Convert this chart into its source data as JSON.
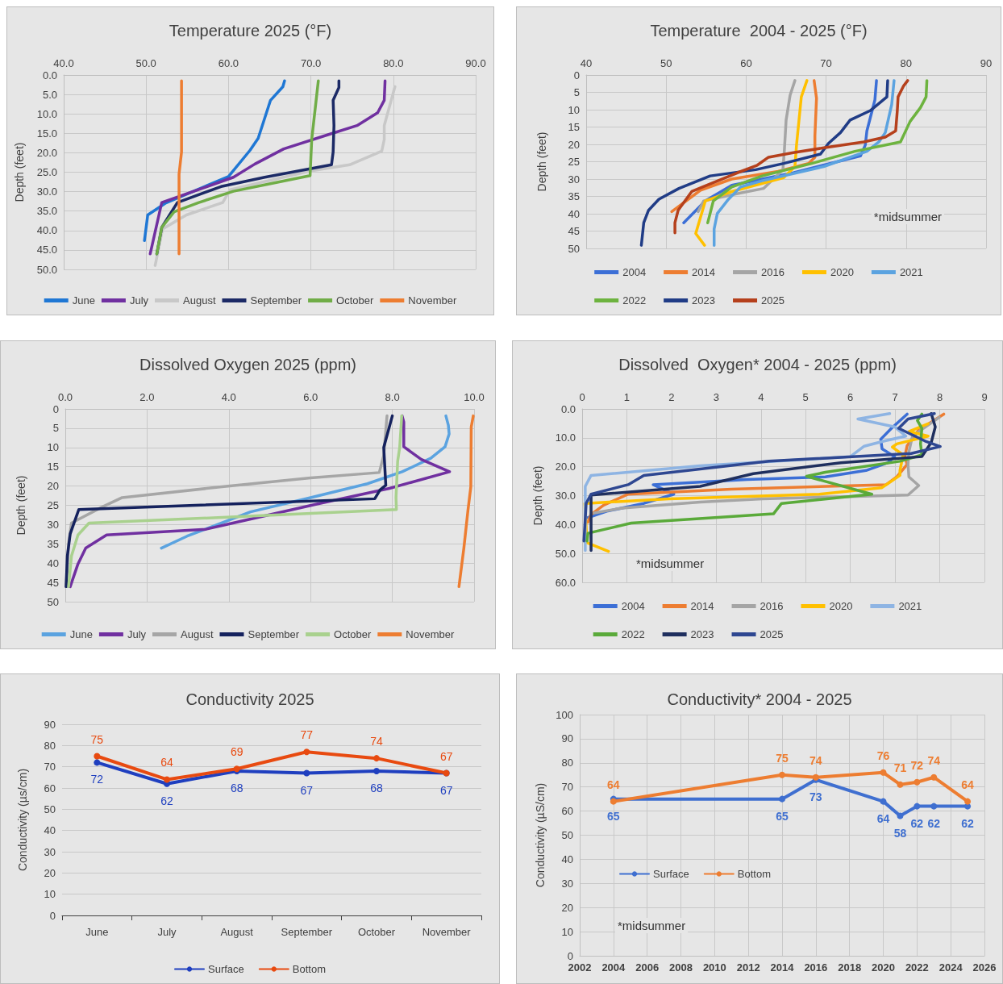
{
  "chart_data": [
    {
      "type": "line",
      "title": "Temperature 2025 (°F)",
      "ylabel": "Depth (feet)",
      "xlim": [
        40,
        90
      ],
      "xticks": [
        {
          "value": 40,
          "label": "40.0"
        },
        {
          "value": 50,
          "label": "50.0"
        },
        {
          "value": 60,
          "label": "60.0"
        },
        {
          "value": 70,
          "label": "70.0"
        },
        {
          "value": 80,
          "label": "80.0"
        },
        {
          "value": 90,
          "label": "90.0"
        }
      ],
      "ylim": [
        50,
        0
      ],
      "yticks": [
        {
          "value": 0,
          "label": "0.0"
        },
        {
          "value": 5,
          "label": "5.0"
        },
        {
          "value": 10,
          "label": "10.0"
        },
        {
          "value": 15,
          "label": "15.0"
        },
        {
          "value": 20,
          "label": "20.0"
        },
        {
          "value": 25,
          "label": "25.0"
        },
        {
          "value": 30,
          "label": "30.0"
        },
        {
          "value": 35,
          "label": "35.0"
        },
        {
          "value": 40,
          "label": "40.0"
        },
        {
          "value": 45,
          "label": "45.0"
        },
        {
          "value": 50,
          "label": "50.0"
        }
      ],
      "grid": true,
      "legend": "bottom",
      "marker": "none",
      "series": [
        {
          "name": "June",
          "color": "#1f77d4",
          "x": [
            66.8,
            66.6,
            65.1,
            63.6,
            62.6,
            60.0,
            52.4,
            50.2,
            49.8
          ],
          "values": [
            1.5,
            3,
            6.5,
            16.3,
            19.4,
            26.1,
            32.9,
            36,
            42.6
          ]
        },
        {
          "name": "July",
          "color": "#7030a0",
          "x": [
            79.0,
            78.9,
            78.1,
            75.6,
            72.0,
            66.7,
            63.2,
            60.6,
            51.9,
            50.5
          ],
          "values": [
            1.5,
            6.5,
            9.7,
            13,
            15.4,
            19,
            22.9,
            26.3,
            32.8,
            46
          ]
        },
        {
          "name": "August",
          "color": "#c8c8c8",
          "x": [
            80.2,
            78.9,
            78.9,
            78.6,
            74.7,
            69.9,
            60.2,
            59.3,
            54.9,
            52.0,
            51.1
          ],
          "values": [
            3,
            13,
            16.6,
            19.6,
            23.1,
            24.7,
            29.5,
            32.8,
            36,
            39.6,
            49
          ]
        },
        {
          "name": "September",
          "color": "#1c2a66",
          "x": [
            73.4,
            73.4,
            72.7,
            72.8,
            72.7,
            72.5,
            64.4,
            59.1,
            53.8,
            51.9,
            51.3
          ],
          "values": [
            1.5,
            3.2,
            6.5,
            13,
            19.8,
            23.1,
            26.3,
            28.7,
            32.8,
            39.2,
            46
          ]
        },
        {
          "name": "October",
          "color": "#70ad47",
          "x": [
            70.9,
            70.1,
            69.9,
            65.2,
            60.6,
            56.4,
            53.4,
            51.9,
            51.3
          ],
          "values": [
            1.5,
            16.6,
            25.9,
            27.9,
            29.9,
            32.8,
            35.2,
            39.2,
            46
          ]
        },
        {
          "name": "November",
          "color": "#ed7d31",
          "x": [
            54.3,
            54.3,
            54.0,
            54.0,
            54.0
          ],
          "values": [
            1.5,
            19.8,
            25.5,
            30.3,
            46
          ]
        }
      ]
    },
    {
      "type": "line",
      "title": "Temperature  2004 - 2025 (°F)",
      "ylabel": "Depth (feet)",
      "xlim": [
        40,
        90
      ],
      "xticks": [
        40,
        50,
        60,
        70,
        80,
        90
      ],
      "ylim": [
        50,
        0
      ],
      "yticks": [
        0,
        5,
        10,
        15,
        20,
        25,
        30,
        35,
        40,
        45,
        50
      ],
      "grid": true,
      "legend": "bottom",
      "marker": "none",
      "annotations": [
        "*midsummer"
      ],
      "series": [
        {
          "name": "2004",
          "color": "#3c6fd6",
          "x": [
            76.3,
            76.1,
            75.1,
            74.9,
            74.3,
            65.9,
            58.2,
            54.9,
            52.2
          ],
          "values": [
            1.6,
            7.2,
            16.1,
            20.2,
            23.3,
            28.2,
            31.8,
            36.3,
            42.6
          ]
        },
        {
          "name": "2014",
          "color": "#ed7d31",
          "x": [
            68.5,
            68.8,
            68.6,
            68.6,
            67.8,
            64.0,
            58.2,
            54.3,
            50.7
          ],
          "values": [
            1.6,
            6.7,
            17.5,
            23.7,
            25.5,
            27.8,
            30,
            33.2,
            39.4
          ]
        },
        {
          "name": "2016",
          "color": "#a5a5a5",
          "x": [
            66.1,
            65.5,
            65.0,
            64.8,
            64.6,
            62.2,
            59.3,
            54.7,
            54.0
          ],
          "values": [
            1.6,
            5.8,
            13,
            21,
            27.3,
            32.7,
            34,
            36.3,
            39.4
          ]
        },
        {
          "name": "2020",
          "color": "#ffc000",
          "x": [
            67.6,
            66.9,
            66.3,
            66.1,
            64.7,
            58.2,
            54.9,
            53.7,
            54.8
          ],
          "values": [
            1.6,
            6.3,
            20.2,
            26.4,
            29.6,
            33.6,
            36.3,
            45.7,
            49.1
          ]
        },
        {
          "name": "2021",
          "color": "#5ba3e0",
          "x": [
            78.5,
            78.2,
            77.4,
            76.6,
            75.1,
            69.7,
            62.0,
            59.3,
            57.8,
            56.4,
            56.0,
            56.0
          ],
          "values": [
            1.6,
            8.5,
            16.6,
            19.3,
            22,
            26.4,
            30.5,
            32.3,
            35.8,
            39.9,
            44.4,
            49.1
          ]
        },
        {
          "name": "2022",
          "color": "#6db33f",
          "x": [
            82.6,
            82.5,
            81.8,
            80.5,
            79.3,
            73.6,
            68.2,
            62.0,
            58.2,
            55.9,
            55.2
          ],
          "values": [
            1.6,
            6.3,
            9.4,
            13.4,
            19.3,
            22,
            25.5,
            29.1,
            32.3,
            36.3,
            42.6
          ]
        },
        {
          "name": "2023",
          "color": "#203c86",
          "x": [
            77.7,
            77.6,
            75.5,
            73.0,
            71.8,
            70.3,
            69.3,
            64.7,
            61.2,
            55.5,
            51.6,
            49.1,
            47.8,
            47.2,
            46.9
          ],
          "values": [
            1.6,
            6.3,
            10.3,
            13,
            16.6,
            19.7,
            22.8,
            25.5,
            27.3,
            29.1,
            32.7,
            35.8,
            39,
            42.6,
            49.1
          ]
        },
        {
          "name": "2025",
          "color": "#b5401c",
          "x": [
            80.2,
            79.7,
            79.0,
            78.9,
            78.7,
            77.4,
            74.7,
            69.7,
            65.9,
            62.8,
            61.4,
            58.9,
            55.1,
            53.2,
            51.5,
            51.1,
            51.1
          ],
          "values": [
            1.6,
            3.1,
            6.3,
            10.3,
            16.1,
            17.9,
            19.3,
            21,
            22.4,
            23.7,
            26,
            28.2,
            31.8,
            33.6,
            39,
            42.6,
            45.5
          ]
        }
      ]
    },
    {
      "type": "line",
      "title": "Dissolved Oxygen 2025 (ppm)",
      "ylabel": "Depth (feet)",
      "xlim": [
        0,
        10
      ],
      "xticks": [
        {
          "value": 0,
          "label": "0.0"
        },
        {
          "value": 2,
          "label": "2.0"
        },
        {
          "value": 4,
          "label": "4.0"
        },
        {
          "value": 6,
          "label": "6.0"
        },
        {
          "value": 8,
          "label": "8.0"
        },
        {
          "value": 10,
          "label": "10.0"
        }
      ],
      "ylim": [
        50,
        0
      ],
      "yticks": [
        0,
        5,
        10,
        15,
        20,
        25,
        30,
        35,
        40,
        45,
        50
      ],
      "grid": true,
      "legend": "bottom",
      "marker": "none",
      "series": [
        {
          "name": "June",
          "color": "#5ba3e0",
          "x": [
            9.31,
            9.37,
            9.39,
            9.29,
            8.94,
            8.24,
            7.39,
            6.0,
            4.53,
            2.98,
            2.35
          ],
          "values": [
            1.8,
            4.2,
            6.5,
            9.8,
            12.8,
            16.3,
            19.4,
            23,
            26.7,
            33,
            36.1
          ]
        },
        {
          "name": "July",
          "color": "#7030a0",
          "x": [
            8.24,
            8.28,
            8.28,
            8.71,
            9.4,
            7.93,
            6.15,
            4.1,
            3.44,
            1.01,
            0.5,
            0.31,
            0.12
          ],
          "values": [
            1.8,
            3.4,
            9.8,
            13.1,
            16.3,
            20.6,
            24.7,
            29.6,
            31.2,
            32.7,
            36.1,
            40.2,
            46.1
          ]
        },
        {
          "name": "August",
          "color": "#a6a6a6",
          "x": [
            7.87,
            7.79,
            7.68,
            6.0,
            3.83,
            1.39,
            0.89,
            0.15,
            0.08,
            0.02
          ],
          "values": [
            1.8,
            12,
            16.5,
            17.9,
            20.2,
            23,
            25.5,
            29.6,
            34.9,
            46.1
          ]
        },
        {
          "name": "September",
          "color": "#15225e",
          "x": [
            8.0,
            7.79,
            7.84,
            7.7,
            7.57,
            0.33,
            0.12,
            0.05,
            0.02
          ],
          "values": [
            1.8,
            10,
            19.8,
            21,
            23.3,
            26.1,
            32.4,
            38.2,
            46.1
          ]
        },
        {
          "name": "October",
          "color": "#a9d18e",
          "x": [
            8.23,
            8.18,
            8.13,
            8.09,
            8.1,
            4.37,
            0.58,
            0.31,
            0.15,
            0.08
          ],
          "values": [
            1.8,
            10,
            13.6,
            23,
            26.1,
            27.9,
            29.6,
            32.7,
            38.2,
            46.1
          ]
        },
        {
          "name": "November",
          "color": "#ed7d31",
          "x": [
            9.98,
            9.93,
            9.92,
            9.85,
            9.75,
            9.63
          ],
          "values": [
            1.8,
            4.7,
            20.2,
            26.3,
            36.1,
            46.1
          ]
        }
      ]
    },
    {
      "type": "line",
      "title": "Dissolved  Oxygen* 2004 - 2025 (ppm)",
      "ylabel": "Depth (feet)",
      "xlim": [
        0,
        9
      ],
      "xticks": [
        0,
        1,
        2,
        3,
        4,
        5,
        6,
        7,
        8,
        9
      ],
      "ylim": [
        60,
        0
      ],
      "yticks": [
        {
          "value": 0,
          "label": "0.0"
        },
        {
          "value": 10,
          "label": "10.0"
        },
        {
          "value": 20,
          "label": "20.0"
        },
        {
          "value": 30,
          "label": "30.0"
        },
        {
          "value": 40,
          "label": "40.0"
        },
        {
          "value": 50,
          "label": "50.0"
        },
        {
          "value": 60,
          "label": "60.0"
        }
      ],
      "grid": true,
      "legend": "bottom",
      "marker": "none",
      "annotations": [
        "*midsummer"
      ],
      "series": [
        {
          "name": "2004",
          "color": "#3c6fd6",
          "x": [
            7.27,
            6.92,
            6.68,
            6.71,
            6.99,
            6.84,
            6.35,
            5.44,
            3.69,
            1.59,
            2.05,
            1.38,
            0.55,
            0.13
          ],
          "values": [
            1.8,
            6.7,
            10.5,
            13.8,
            16.5,
            18.6,
            21.3,
            23.5,
            24.4,
            26.2,
            29.5,
            32.7,
            35.4,
            37.6
          ]
        },
        {
          "name": "2014",
          "color": "#ed7d31",
          "x": [
            8.09,
            7.53,
            7.27,
            7.22,
            7.27,
            7.04,
            6.8,
            3.34,
            1.03,
            0.48,
            0.2,
            0.13
          ],
          "values": [
            1.8,
            7.3,
            12.7,
            16.5,
            19.2,
            23.5,
            26.2,
            27.8,
            29.5,
            33.3,
            36.5,
            39.2
          ]
        },
        {
          "name": "2016",
          "color": "#a5a5a5",
          "x": [
            7.99,
            7.39,
            7.31,
            7.29,
            7.31,
            7.53,
            7.29,
            4.04,
            2.64,
            0.89,
            0.27
          ],
          "values": [
            2.9,
            9.4,
            14.8,
            19.2,
            23.5,
            26.5,
            29.8,
            31.1,
            32.2,
            34.3,
            36
          ]
        },
        {
          "name": "2020",
          "color": "#ffc000",
          "x": [
            7.74,
            7.32,
            7.74,
            7.04,
            6.94,
            7.18,
            7.11,
            7.11,
            6.7,
            5.3,
            1.94,
            0.06,
            0.11,
            0.59
          ],
          "values": [
            5.1,
            7.8,
            9.4,
            12.1,
            13.2,
            15.9,
            21.3,
            23,
            27.3,
            29.5,
            31.1,
            32.7,
            46.3,
            49.3
          ]
        },
        {
          "name": "2021",
          "color": "#8eb4e3",
          "x": [
            6.88,
            6.17,
            6.99,
            7.24,
            6.76,
            6.31,
            6.0,
            2.64,
            0.2,
            0.07,
            0.07
          ],
          "values": [
            1.6,
            3.5,
            6.2,
            9.4,
            11.1,
            12.9,
            16.5,
            19.7,
            23,
            26.8,
            49
          ]
        },
        {
          "name": "2022",
          "color": "#5aaa3a",
          "x": [
            7.6,
            7.5,
            7.6,
            7.57,
            7.6,
            7.11,
            5.44,
            5.02,
            6.48,
            4.46,
            4.28,
            1.1,
            0.13,
            0.11
          ],
          "values": [
            1.8,
            4,
            6.7,
            12.1,
            15.9,
            18.1,
            21.9,
            23.3,
            29.5,
            32.7,
            36.3,
            39.5,
            43,
            45.7
          ]
        },
        {
          "name": "2023",
          "color": "#1f2f5e",
          "x": [
            7.81,
            7.9,
            7.81,
            7.6,
            5.79,
            3.83,
            2.64,
            0.2,
            0.2
          ],
          "values": [
            1.6,
            6.2,
            11.6,
            16.5,
            18.6,
            22.4,
            26.8,
            29.8,
            49
          ]
        },
        {
          "name": "2025",
          "color": "#2e4791",
          "x": [
            7.88,
            7.29,
            7.08,
            7.67,
            8.01,
            7.36,
            4.18,
            1.38,
            1.03,
            0.2,
            0.09,
            0.04
          ],
          "values": [
            1.6,
            3.5,
            6.7,
            11.1,
            13,
            15.4,
            18.1,
            23,
            26.2,
            29.5,
            32.7,
            45.7
          ]
        }
      ]
    },
    {
      "type": "line",
      "title": "Conductivity 2025",
      "ylabel": "Conductivity (µs/cm)",
      "categories": [
        "June",
        "July",
        "August",
        "September",
        "October",
        "November"
      ],
      "ylim": [
        0,
        90
      ],
      "yticks": [
        0,
        10,
        20,
        30,
        40,
        50,
        60,
        70,
        80,
        90
      ],
      "grid": "y",
      "legend": "bottom",
      "marker": "circle",
      "data_labels": true,
      "series": [
        {
          "name": "Surface",
          "color": "#1f3fbf",
          "values": [
            72,
            62,
            68,
            67,
            68,
            67
          ]
        },
        {
          "name": "Bottom",
          "color": "#e84a10",
          "values": [
            75,
            64,
            69,
            77,
            74,
            67
          ]
        }
      ]
    },
    {
      "type": "line",
      "title": "Conductivity* 2004 - 2025",
      "ylabel": "Conductivity (µS/cm)",
      "x": [
        2004,
        2014,
        2016,
        2020,
        2021,
        2022,
        2023,
        2025
      ],
      "xlim": [
        2002,
        2026
      ],
      "xticks": [
        2002,
        2004,
        2006,
        2008,
        2010,
        2012,
        2014,
        2016,
        2018,
        2020,
        2022,
        2024,
        2026
      ],
      "ylim": [
        0,
        100
      ],
      "yticks": [
        0,
        10,
        20,
        30,
        40,
        50,
        60,
        70,
        80,
        90,
        100
      ],
      "grid": true,
      "legend": "bottom left",
      "marker": "circle",
      "data_labels": true,
      "annotations": [
        "*midsummer"
      ],
      "series": [
        {
          "name": "Surface",
          "color": "#3f6fd0",
          "values": [
            65,
            65,
            73,
            64,
            58,
            62,
            62,
            62
          ]
        },
        {
          "name": "Bottom",
          "color": "#ed7d31",
          "values": [
            64,
            75,
            74,
            76,
            71,
            72,
            74,
            64
          ]
        }
      ]
    }
  ]
}
